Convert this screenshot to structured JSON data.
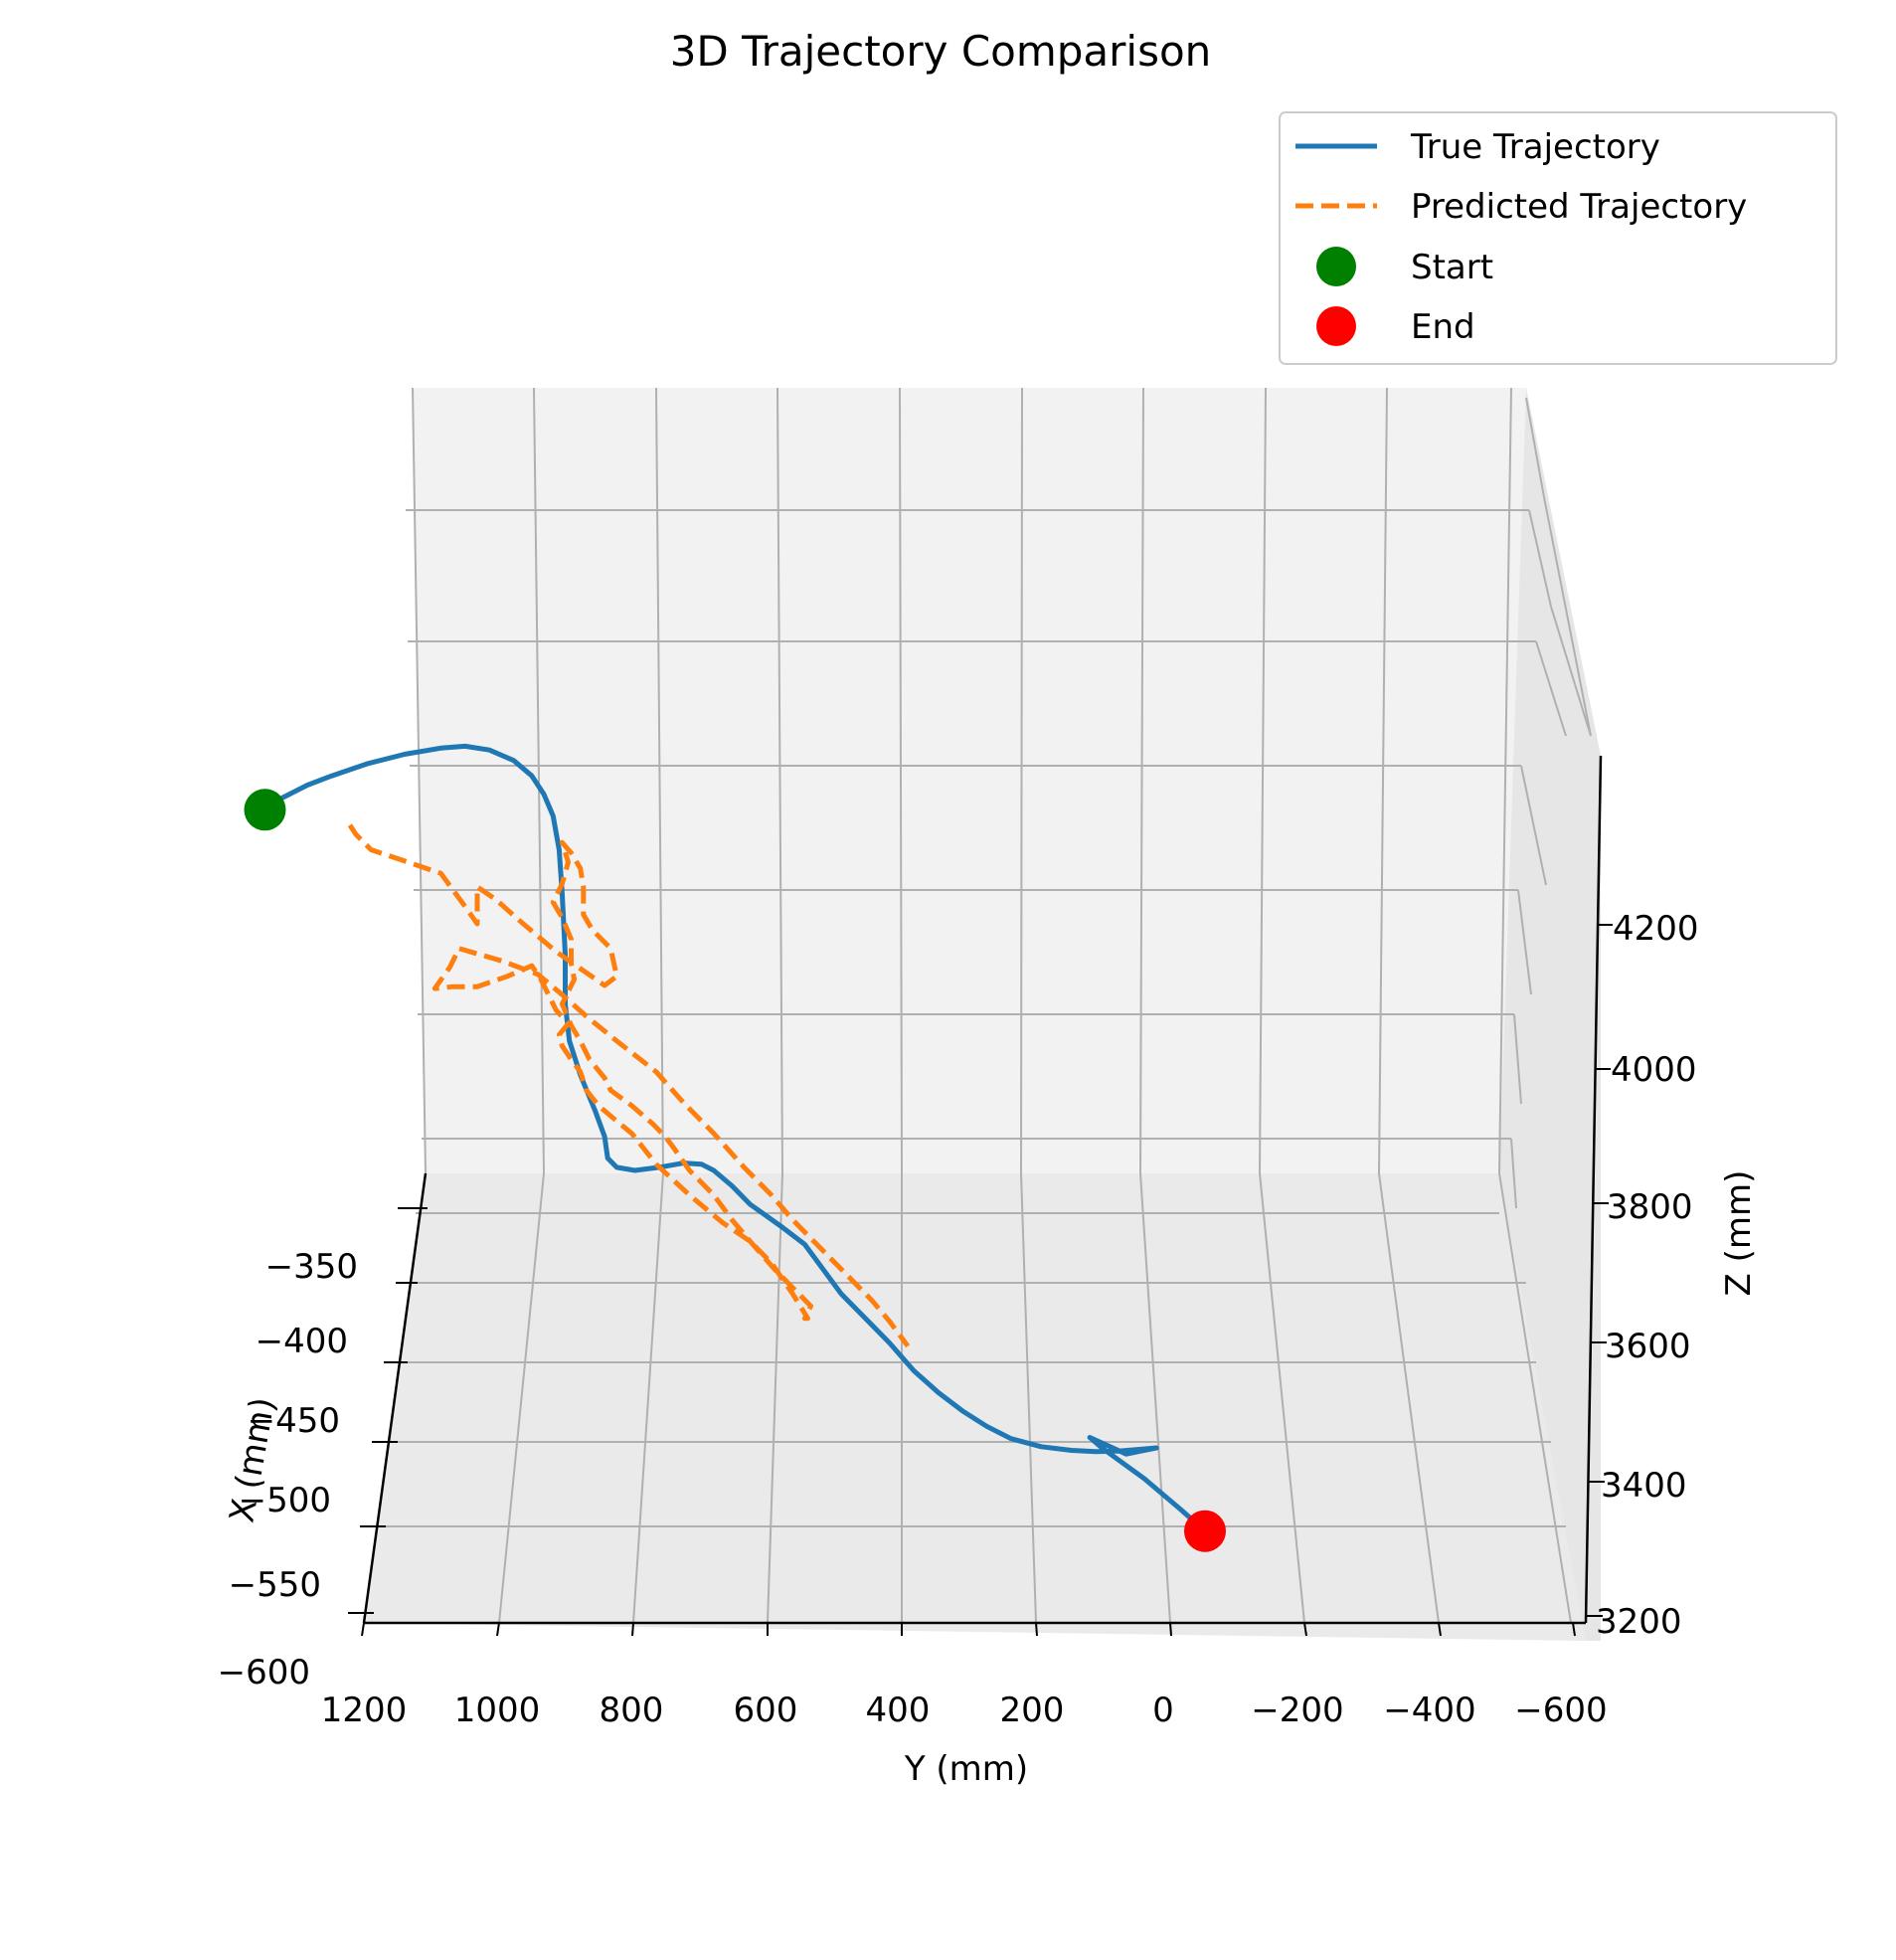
{
  "chart_data": {
    "type": "line",
    "projection": "3d",
    "title": "3D Trajectory Comparison",
    "xlabel": "X (mm)",
    "ylabel": "Y (mm)",
    "zlabel": "Z (mm)",
    "x_ticks": [
      "−350",
      "−400",
      "−450",
      "−500",
      "−550",
      "−600"
    ],
    "y_ticks": [
      "1200",
      "1000",
      "800",
      "600",
      "400",
      "200",
      "0",
      "−200",
      "−400",
      "−600"
    ],
    "z_ticks": [
      "3200",
      "3400",
      "3600",
      "3800",
      "4000",
      "4200"
    ],
    "grid": true,
    "legend_placement": "top-right",
    "legend": [
      {
        "label": "True Trajectory",
        "kind": "line",
        "color": "#1f77b4"
      },
      {
        "label": "Predicted Trajectory",
        "kind": "dashed",
        "color": "#ff7f0e"
      },
      {
        "label": "Start",
        "kind": "marker",
        "color": "#008000"
      },
      {
        "label": "End",
        "kind": "marker",
        "color": "#ff0000"
      }
    ],
    "series": [
      {
        "name": "True Trajectory",
        "color": "#1f77b4",
        "style": "solid",
        "points_yz": [
          [
            1050,
            4385
          ],
          [
            1040,
            4395
          ],
          [
            1020,
            4405
          ],
          [
            980,
            4425
          ],
          [
            940,
            4440
          ],
          [
            880,
            4460
          ],
          [
            820,
            4475
          ],
          [
            760,
            4485
          ],
          [
            720,
            4488
          ],
          [
            680,
            4482
          ],
          [
            640,
            4465
          ],
          [
            610,
            4440
          ],
          [
            590,
            4410
          ],
          [
            575,
            4375
          ],
          [
            565,
            4320
          ],
          [
            560,
            4250
          ],
          [
            555,
            4150
          ],
          [
            555,
            4070
          ],
          [
            548,
            4010
          ],
          [
            530,
            3955
          ],
          [
            505,
            3895
          ],
          [
            490,
            3855
          ],
          [
            485,
            3820
          ],
          [
            470,
            3805
          ],
          [
            440,
            3800
          ],
          [
            400,
            3805
          ],
          [
            360,
            3812
          ],
          [
            330,
            3810
          ],
          [
            310,
            3800
          ],
          [
            280,
            3775
          ],
          [
            250,
            3745
          ],
          [
            200,
            3710
          ],
          [
            160,
            3680
          ],
          [
            130,
            3640
          ],
          [
            100,
            3600
          ],
          [
            60,
            3560
          ],
          [
            20,
            3520
          ],
          [
            -20,
            3475
          ],
          [
            -60,
            3440
          ],
          [
            -100,
            3410
          ],
          [
            -140,
            3385
          ],
          [
            -180,
            3365
          ],
          [
            -230,
            3352
          ],
          [
            -280,
            3346
          ],
          [
            -320,
            3344
          ],
          [
            -360,
            3345
          ],
          [
            -420,
            3350
          ],
          [
            -370,
            3340
          ],
          [
            -310,
            3367
          ],
          [
            -330,
            3350
          ],
          [
            -400,
            3300
          ],
          [
            -460,
            3250
          ],
          [
            -500,
            3215
          ]
        ]
      },
      {
        "name": "Predicted Trajectory",
        "color": "#ff7f0e",
        "style": "dashed",
        "points_yz": [
          [
            910,
            4360
          ],
          [
            900,
            4345
          ],
          [
            875,
            4320
          ],
          [
            820,
            4302
          ],
          [
            760,
            4282
          ],
          [
            720,
            4228
          ],
          [
            700,
            4200
          ],
          [
            700,
            4260
          ],
          [
            670,
            4240
          ],
          [
            630,
            4205
          ],
          [
            570,
            4155
          ],
          [
            490,
            4100
          ],
          [
            470,
            4115
          ],
          [
            480,
            4160
          ],
          [
            510,
            4190
          ],
          [
            525,
            4215
          ],
          [
            525,
            4260
          ],
          [
            530,
            4290
          ],
          [
            545,
            4315
          ],
          [
            560,
            4332
          ],
          [
            550,
            4300
          ],
          [
            560,
            4265
          ],
          [
            575,
            4235
          ],
          [
            560,
            4210
          ],
          [
            545,
            4175
          ],
          [
            545,
            4135
          ],
          [
            540,
            4110
          ],
          [
            560,
            4070
          ],
          [
            545,
            4035
          ],
          [
            530,
            4010
          ],
          [
            515,
            3980
          ],
          [
            490,
            3950
          ],
          [
            480,
            3930
          ],
          [
            445,
            3905
          ],
          [
            410,
            3875
          ],
          [
            390,
            3855
          ],
          [
            375,
            3835
          ],
          [
            350,
            3800
          ],
          [
            310,
            3760
          ],
          [
            280,
            3720
          ],
          [
            250,
            3685
          ],
          [
            210,
            3640
          ],
          [
            170,
            3600
          ],
          [
            150,
            3580
          ],
          [
            160,
            3560
          ],
          [
            155,
            3560
          ],
          [
            180,
            3600
          ],
          [
            215,
            3650
          ],
          [
            250,
            3685
          ],
          [
            295,
            3715
          ],
          [
            350,
            3760
          ],
          [
            405,
            3810
          ],
          [
            445,
            3860
          ],
          [
            470,
            3880
          ],
          [
            500,
            3905
          ],
          [
            520,
            3930
          ],
          [
            530,
            3960
          ],
          [
            545,
            3980
          ],
          [
            560,
            4002
          ],
          [
            565,
            4020
          ],
          [
            550,
            4038
          ],
          [
            570,
            4060
          ],
          [
            580,
            4080
          ],
          [
            595,
            4110
          ],
          [
            610,
            4132
          ],
          [
            650,
            4115
          ],
          [
            700,
            4098
          ],
          [
            740,
            4098
          ],
          [
            770,
            4095
          ],
          [
            745,
            4130
          ],
          [
            730,
            4160
          ],
          [
            660,
            4140
          ],
          [
            600,
            4118
          ],
          [
            560,
            4085
          ],
          [
            520,
            4050
          ],
          [
            470,
            4010
          ],
          [
            405,
            3960
          ],
          [
            360,
            3910
          ],
          [
            310,
            3860
          ],
          [
            260,
            3805
          ],
          [
            215,
            3760
          ],
          [
            180,
            3720
          ],
          [
            140,
            3680
          ],
          [
            90,
            3630
          ],
          [
            50,
            3590
          ],
          [
            20,
            3555
          ],
          [
            -10,
            3515
          ]
        ]
      }
    ],
    "markers": [
      {
        "name": "Start",
        "color": "#008000"
      },
      {
        "name": "End",
        "color": "#ff0000"
      }
    ]
  }
}
